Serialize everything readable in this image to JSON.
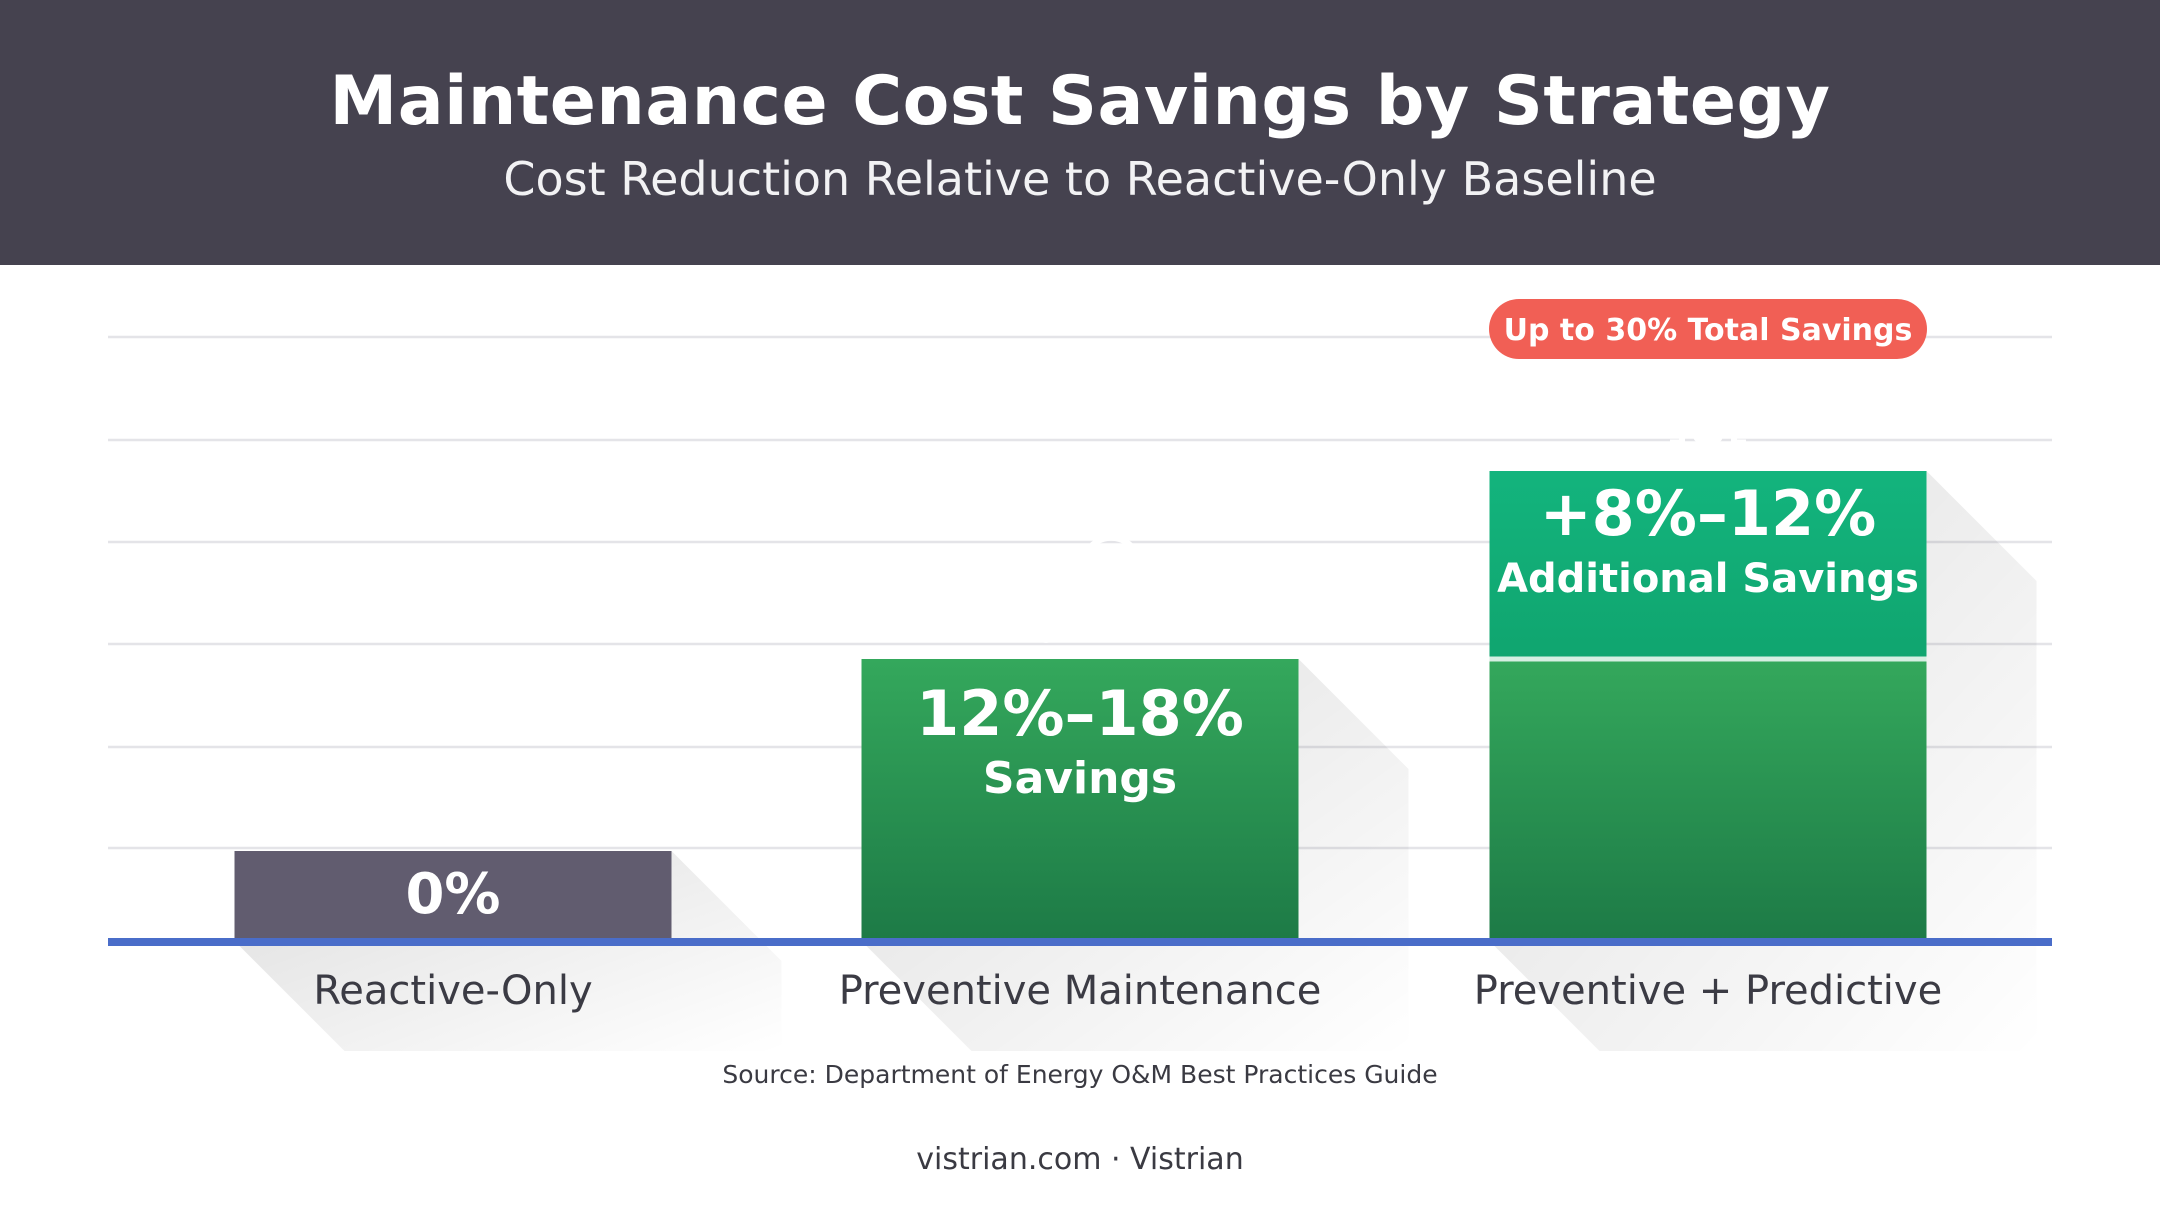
{
  "header": {
    "title": "Maintenance Cost Savings by Strategy",
    "subtitle": "Cost Reduction Relative to Reactive-Only Baseline"
  },
  "chart_data": {
    "type": "bar",
    "title": "Maintenance Cost Savings by Strategy",
    "subtitle": "Cost Reduction Relative to Reactive-Only Baseline",
    "categories": [
      "Reactive-Only",
      "Preventive Maintenance",
      "Preventive + Predictive"
    ],
    "series": [
      {
        "values": [
          0,
          15,
          15
        ],
        "color": "#2ea05a"
      },
      {
        "values": [
          0,
          0,
          10
        ],
        "color": "#12b27c"
      }
    ],
    "bar_labels": [
      {
        "value": "0%",
        "text": ""
      },
      {
        "value": "12%–18%",
        "text": "Savings",
        "icon": "wrench-icon"
      },
      {
        "value": "+8%–12%",
        "text": "Additional Savings",
        "icon": "chip-icon"
      }
    ],
    "callout": "Up to 30% Total Savings",
    "colors": {
      "baseline_bar": "#615c6f",
      "axis": "#4a6dc9",
      "callout": "#f15f55",
      "gridline": "#e4e4e8"
    },
    "grid": true
  },
  "source": "Source: Department of Energy O&M Best Practices Guide",
  "footer": "vistrian.com · Vistrian"
}
